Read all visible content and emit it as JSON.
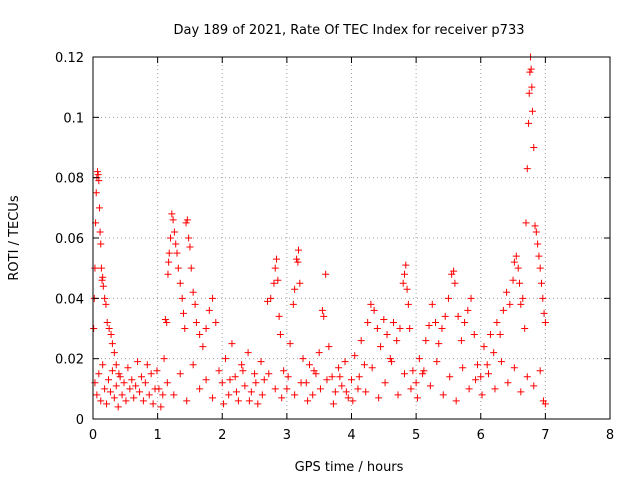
{
  "chart_data": {
    "type": "scatter",
    "title": "Day 189 of 2021, Rate Of TEC Index for receiver p733",
    "xlabel": "GPS time / hours",
    "ylabel": "ROTI / TECUs",
    "xlim": [
      0,
      8
    ],
    "ylim": [
      0,
      0.12
    ],
    "x_ticks": [
      0,
      1,
      2,
      3,
      4,
      5,
      6,
      7,
      8
    ],
    "x_tick_labels": [
      "0",
      "1",
      "2",
      "3",
      "4",
      "5",
      "6",
      "7",
      "8"
    ],
    "y_ticks": [
      0,
      0.02,
      0.04,
      0.06,
      0.08,
      0.1,
      0.12
    ],
    "y_tick_labels": [
      "0",
      "0.02",
      "0.04",
      "0.06",
      "0.08",
      "0.1",
      "0.12"
    ],
    "grid": true,
    "marker": "+",
    "color": "#ff0000",
    "series": [
      {
        "name": "ROTI",
        "points": [
          [
            0.01,
            0.03
          ],
          [
            0.02,
            0.04
          ],
          [
            0.03,
            0.05
          ],
          [
            0.04,
            0.065
          ],
          [
            0.05,
            0.075
          ],
          [
            0.06,
            0.08
          ],
          [
            0.07,
            0.082
          ],
          [
            0.08,
            0.081
          ],
          [
            0.09,
            0.079
          ],
          [
            0.1,
            0.07
          ],
          [
            0.11,
            0.062
          ],
          [
            0.12,
            0.058
          ],
          [
            0.13,
            0.05
          ],
          [
            0.14,
            0.046
          ],
          [
            0.15,
            0.047
          ],
          [
            0.16,
            0.044
          ],
          [
            0.18,
            0.04
          ],
          [
            0.2,
            0.038
          ],
          [
            0.22,
            0.032
          ],
          [
            0.25,
            0.03
          ],
          [
            0.28,
            0.028
          ],
          [
            0.3,
            0.025
          ],
          [
            0.33,
            0.022
          ],
          [
            0.36,
            0.018
          ],
          [
            0.4,
            0.015
          ],
          [
            0.03,
            0.012
          ],
          [
            0.06,
            0.008
          ],
          [
            0.09,
            0.015
          ],
          [
            0.12,
            0.006
          ],
          [
            0.15,
            0.018
          ],
          [
            0.18,
            0.01
          ],
          [
            0.21,
            0.005
          ],
          [
            0.24,
            0.013
          ],
          [
            0.27,
            0.009
          ],
          [
            0.3,
            0.016
          ],
          [
            0.33,
            0.007
          ],
          [
            0.36,
            0.011
          ],
          [
            0.39,
            0.004
          ],
          [
            0.42,
            0.014
          ],
          [
            0.45,
            0.008
          ],
          [
            0.48,
            0.012
          ],
          [
            0.51,
            0.006
          ],
          [
            0.54,
            0.017
          ],
          [
            0.57,
            0.01
          ],
          [
            0.6,
            0.013
          ],
          [
            0.63,
            0.007
          ],
          [
            0.66,
            0.011
          ],
          [
            0.69,
            0.019
          ],
          [
            0.72,
            0.009
          ],
          [
            0.75,
            0.014
          ],
          [
            0.78,
            0.006
          ],
          [
            0.81,
            0.012
          ],
          [
            0.84,
            0.018
          ],
          [
            0.87,
            0.008
          ],
          [
            0.9,
            0.015
          ],
          [
            0.93,
            0.005
          ],
          [
            0.96,
            0.01
          ],
          [
            0.99,
            0.016
          ],
          [
            1.02,
            0.01
          ],
          [
            1.05,
            0.004
          ],
          [
            1.08,
            0.008
          ],
          [
            1.1,
            0.02
          ],
          [
            1.12,
            0.033
          ],
          [
            1.14,
            0.032
          ],
          [
            1.16,
            0.048
          ],
          [
            1.17,
            0.052
          ],
          [
            1.18,
            0.055
          ],
          [
            1.2,
            0.06
          ],
          [
            1.22,
            0.068
          ],
          [
            1.24,
            0.066
          ],
          [
            1.26,
            0.062
          ],
          [
            1.28,
            0.058
          ],
          [
            1.3,
            0.055
          ],
          [
            1.32,
            0.05
          ],
          [
            1.35,
            0.045
          ],
          [
            1.38,
            0.04
          ],
          [
            1.4,
            0.035
          ],
          [
            1.42,
            0.03
          ],
          [
            1.44,
            0.065
          ],
          [
            1.46,
            0.066
          ],
          [
            1.48,
            0.06
          ],
          [
            1.5,
            0.057
          ],
          [
            1.52,
            0.05
          ],
          [
            1.55,
            0.042
          ],
          [
            1.58,
            0.038
          ],
          [
            1.6,
            0.032
          ],
          [
            1.65,
            0.028
          ],
          [
            1.7,
            0.024
          ],
          [
            1.75,
            0.03
          ],
          [
            1.8,
            0.036
          ],
          [
            1.85,
            0.04
          ],
          [
            1.9,
            0.032
          ],
          [
            1.15,
            0.012
          ],
          [
            1.25,
            0.008
          ],
          [
            1.35,
            0.015
          ],
          [
            1.45,
            0.006
          ],
          [
            1.55,
            0.018
          ],
          [
            1.65,
            0.01
          ],
          [
            1.75,
            0.013
          ],
          [
            1.85,
            0.007
          ],
          [
            1.95,
            0.016
          ],
          [
            2.0,
            0.012
          ],
          [
            2.05,
            0.02
          ],
          [
            2.1,
            0.008
          ],
          [
            2.15,
            0.025
          ],
          [
            2.2,
            0.014
          ],
          [
            2.25,
            0.006
          ],
          [
            2.3,
            0.018
          ],
          [
            2.35,
            0.011
          ],
          [
            2.4,
            0.022
          ],
          [
            2.45,
            0.009
          ],
          [
            2.5,
            0.015
          ],
          [
            2.55,
            0.005
          ],
          [
            2.6,
            0.019
          ],
          [
            2.65,
            0.013
          ],
          [
            2.7,
            0.039
          ],
          [
            2.75,
            0.04
          ],
          [
            2.8,
            0.045
          ],
          [
            2.82,
            0.05
          ],
          [
            2.84,
            0.053
          ],
          [
            2.86,
            0.046
          ],
          [
            2.88,
            0.034
          ],
          [
            2.9,
            0.028
          ],
          [
            2.95,
            0.016
          ],
          [
            3.0,
            0.01
          ],
          [
            3.05,
            0.025
          ],
          [
            3.1,
            0.038
          ],
          [
            3.12,
            0.043
          ],
          [
            3.15,
            0.053
          ],
          [
            3.17,
            0.052
          ],
          [
            3.18,
            0.056
          ],
          [
            3.2,
            0.045
          ],
          [
            3.25,
            0.02
          ],
          [
            3.3,
            0.012
          ],
          [
            3.35,
            0.018
          ],
          [
            3.4,
            0.008
          ],
          [
            3.45,
            0.015
          ],
          [
            3.5,
            0.022
          ],
          [
            3.55,
            0.036
          ],
          [
            3.57,
            0.034
          ],
          [
            3.6,
            0.048
          ],
          [
            3.65,
            0.024
          ],
          [
            3.7,
            0.014
          ],
          [
            3.75,
            0.009
          ],
          [
            3.8,
            0.017
          ],
          [
            3.85,
            0.011
          ],
          [
            3.9,
            0.019
          ],
          [
            3.95,
            0.007
          ],
          [
            4.0,
            0.013
          ],
          [
            4.05,
            0.021
          ],
          [
            4.1,
            0.01
          ],
          [
            4.15,
            0.026
          ],
          [
            4.2,
            0.018
          ],
          [
            4.25,
            0.032
          ],
          [
            4.3,
            0.038
          ],
          [
            4.35,
            0.036
          ],
          [
            4.4,
            0.03
          ],
          [
            4.45,
            0.024
          ],
          [
            4.5,
            0.033
          ],
          [
            4.55,
            0.028
          ],
          [
            4.6,
            0.02
          ],
          [
            4.65,
            0.032
          ],
          [
            4.7,
            0.026
          ],
          [
            4.75,
            0.03
          ],
          [
            4.8,
            0.045
          ],
          [
            4.82,
            0.048
          ],
          [
            4.84,
            0.051
          ],
          [
            4.86,
            0.043
          ],
          [
            4.88,
            0.038
          ],
          [
            4.9,
            0.03
          ],
          [
            4.95,
            0.016
          ],
          [
            5.0,
            0.012
          ],
          [
            5.05,
            0.02
          ],
          [
            5.1,
            0.015
          ],
          [
            5.15,
            0.026
          ],
          [
            5.2,
            0.031
          ],
          [
            5.25,
            0.038
          ],
          [
            5.3,
            0.032
          ],
          [
            5.35,
            0.025
          ],
          [
            5.4,
            0.03
          ],
          [
            5.45,
            0.034
          ],
          [
            5.5,
            0.04
          ],
          [
            5.55,
            0.048
          ],
          [
            5.58,
            0.049
          ],
          [
            5.6,
            0.045
          ],
          [
            5.65,
            0.034
          ],
          [
            5.7,
            0.026
          ],
          [
            5.75,
            0.032
          ],
          [
            5.8,
            0.036
          ],
          [
            5.85,
            0.04
          ],
          [
            5.9,
            0.028
          ],
          [
            5.95,
            0.018
          ],
          [
            6.0,
            0.014
          ],
          [
            6.05,
            0.024
          ],
          [
            6.1,
            0.018
          ],
          [
            6.15,
            0.028
          ],
          [
            6.2,
            0.022
          ],
          [
            6.25,
            0.032
          ],
          [
            6.3,
            0.028
          ],
          [
            6.35,
            0.036
          ],
          [
            6.4,
            0.042
          ],
          [
            6.45,
            0.038
          ],
          [
            6.5,
            0.046
          ],
          [
            6.52,
            0.052
          ],
          [
            6.55,
            0.054
          ],
          [
            6.58,
            0.05
          ],
          [
            6.6,
            0.045
          ],
          [
            6.62,
            0.038
          ],
          [
            6.65,
            0.04
          ],
          [
            6.68,
            0.03
          ],
          [
            6.7,
            0.065
          ],
          [
            6.72,
            0.083
          ],
          [
            6.74,
            0.098
          ],
          [
            6.75,
            0.108
          ],
          [
            6.76,
            0.115
          ],
          [
            6.77,
            0.12
          ],
          [
            6.78,
            0.116
          ],
          [
            6.79,
            0.11
          ],
          [
            6.8,
            0.102
          ],
          [
            6.82,
            0.09
          ],
          [
            6.84,
            0.064
          ],
          [
            6.86,
            0.062
          ],
          [
            6.88,
            0.058
          ],
          [
            6.9,
            0.054
          ],
          [
            6.92,
            0.05
          ],
          [
            6.94,
            0.045
          ],
          [
            6.96,
            0.04
          ],
          [
            6.98,
            0.035
          ],
          [
            7.0,
            0.032
          ],
          [
            4.02,
            0.006
          ],
          [
            4.12,
            0.014
          ],
          [
            4.22,
            0.009
          ],
          [
            4.32,
            0.017
          ],
          [
            4.42,
            0.007
          ],
          [
            4.52,
            0.012
          ],
          [
            4.62,
            0.019
          ],
          [
            4.72,
            0.008
          ],
          [
            4.82,
            0.015
          ],
          [
            4.92,
            0.01
          ],
          [
            5.02,
            0.007
          ],
          [
            5.12,
            0.016
          ],
          [
            5.22,
            0.011
          ],
          [
            5.32,
            0.019
          ],
          [
            5.42,
            0.008
          ],
          [
            5.52,
            0.014
          ],
          [
            5.62,
            0.006
          ],
          [
            5.72,
            0.017
          ],
          [
            5.82,
            0.01
          ],
          [
            5.92,
            0.013
          ],
          [
            6.02,
            0.008
          ],
          [
            6.12,
            0.015
          ],
          [
            6.22,
            0.01
          ],
          [
            6.32,
            0.019
          ],
          [
            6.42,
            0.012
          ],
          [
            6.52,
            0.017
          ],
          [
            6.62,
            0.009
          ],
          [
            6.72,
            0.014
          ],
          [
            6.82,
            0.011
          ],
          [
            6.92,
            0.016
          ],
          [
            6.97,
            0.006
          ],
          [
            7.0,
            0.005
          ],
          [
            2.02,
            0.005
          ],
          [
            2.12,
            0.013
          ],
          [
            2.22,
            0.009
          ],
          [
            2.32,
            0.016
          ],
          [
            2.42,
            0.006
          ],
          [
            2.52,
            0.012
          ],
          [
            2.62,
            0.008
          ],
          [
            2.72,
            0.015
          ],
          [
            2.82,
            0.01
          ],
          [
            2.92,
            0.007
          ],
          [
            3.02,
            0.014
          ],
          [
            3.12,
            0.008
          ],
          [
            3.22,
            0.012
          ],
          [
            3.32,
            0.006
          ],
          [
            3.42,
            0.016
          ],
          [
            3.52,
            0.01
          ],
          [
            3.62,
            0.013
          ],
          [
            3.72,
            0.005
          ],
          [
            3.82,
            0.014
          ],
          [
            3.92,
            0.009
          ]
        ]
      }
    ]
  }
}
